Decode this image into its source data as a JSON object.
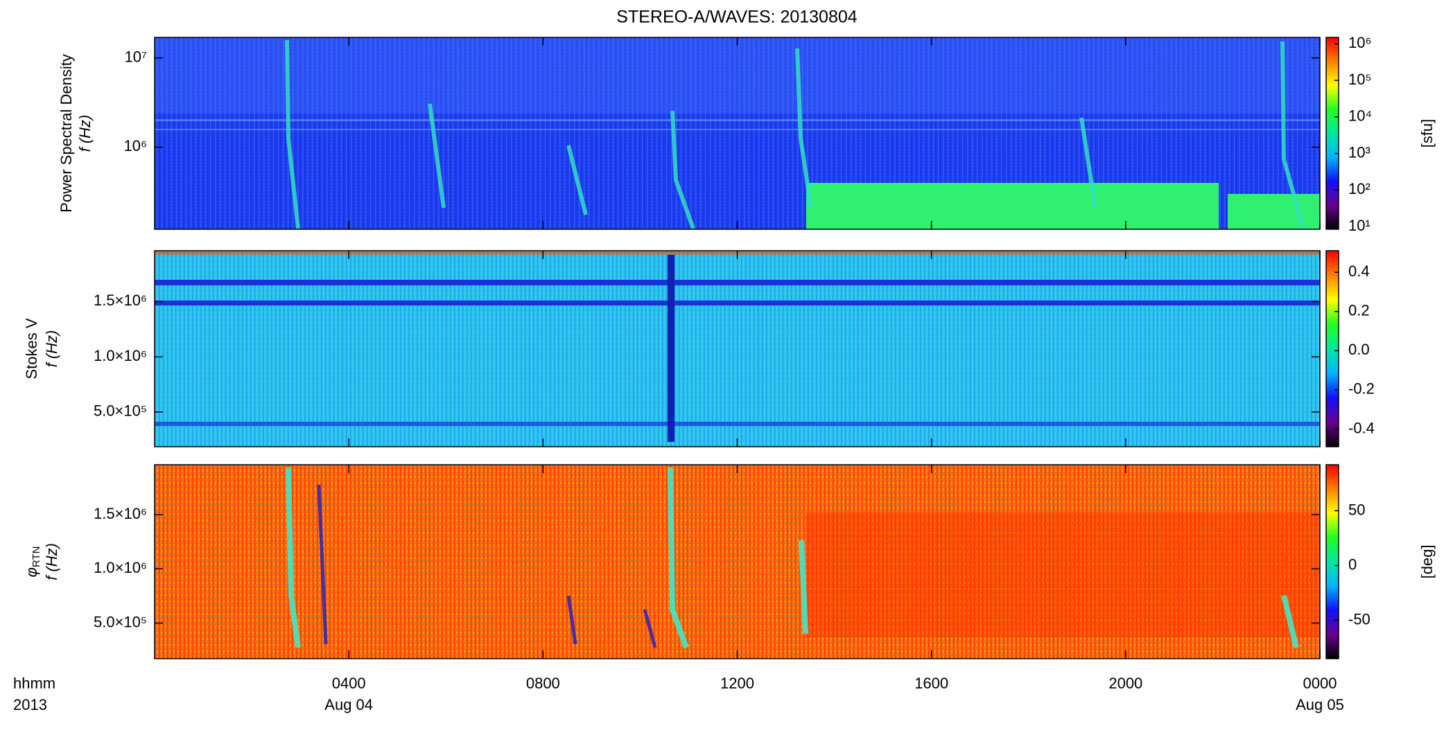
{
  "colormap": [
    "#000000",
    "#6a0090",
    "#1010ff",
    "#00b4ff",
    "#00e8a0",
    "#20ff20",
    "#ffff00",
    "#ff8000",
    "#ff0000"
  ],
  "chart_data": [
    {
      "type": "heatmap",
      "title": "STEREO-A/WAVES: 20130804",
      "ylabel": "Power Spectral Density",
      "ylabel2": "f (Hz)",
      "ylog": true,
      "ylim": [
        120000,
        17000000
      ],
      "yticks": [
        {
          "value": 10000000,
          "label": "10⁷"
        },
        {
          "value": 1000000,
          "label": "10⁶"
        }
      ],
      "clog": true,
      "clim": [
        8.4,
        1500000
      ],
      "cticks": [
        {
          "value": 10,
          "label": "10¹"
        },
        {
          "value": 100,
          "label": "10²"
        },
        {
          "value": 1000,
          "label": "10³"
        },
        {
          "value": 10000,
          "label": "10⁴"
        },
        {
          "value": 100000,
          "label": "10⁵"
        },
        {
          "value": 1000000,
          "label": "10⁶"
        }
      ],
      "cbar_label": "[sfu]"
    },
    {
      "type": "heatmap",
      "ylabel": "Stokes V",
      "ylabel2": "f (Hz)",
      "ylog": false,
      "ylim": [
        186000,
        1960000
      ],
      "yticks": [
        {
          "value": 500000,
          "label": "5.0×10⁵"
        },
        {
          "value": 1000000,
          "label": "1.0×10⁶"
        },
        {
          "value": 1500000,
          "label": "1.5×10⁶"
        }
      ],
      "clog": false,
      "clim": [
        -0.49,
        0.51
      ],
      "cticks": [
        0.4,
        0.2,
        {
          "value": 0,
          "label": "0.0"
        },
        -0.2,
        -0.4
      ]
    },
    {
      "type": "heatmap",
      "ylabel_symbol": "φ",
      "ylabel_subscript": "RTN",
      "ylabel2": "f (Hz)",
      "ylog": false,
      "ylim": [
        172000,
        1960000
      ],
      "yticks": [
        {
          "value": 500000,
          "label": "5.0×10⁵"
        },
        {
          "value": 1000000,
          "label": "1.0×10⁶"
        },
        {
          "value": 1500000,
          "label": "1.5×10⁶"
        }
      ],
      "clog": false,
      "clim": [
        -85,
        92
      ],
      "cticks": [
        50,
        0,
        -50
      ],
      "cbar_label": "[deg]",
      "xlim": [
        0,
        24
      ],
      "xticks": [
        {
          "value": 4,
          "label": "0400"
        },
        {
          "value": 8,
          "label": "0800"
        },
        {
          "value": 12,
          "label": "1200"
        },
        {
          "value": 16,
          "label": "1600"
        },
        {
          "value": 20,
          "label": "2000"
        },
        {
          "value": 24,
          "label": "0000"
        }
      ],
      "date_labels": [
        {
          "value": 4,
          "label": "Aug 04"
        },
        {
          "value": 24,
          "label": "Aug 05"
        }
      ],
      "x_axis_label": "hhmm",
      "year": "2013"
    }
  ]
}
